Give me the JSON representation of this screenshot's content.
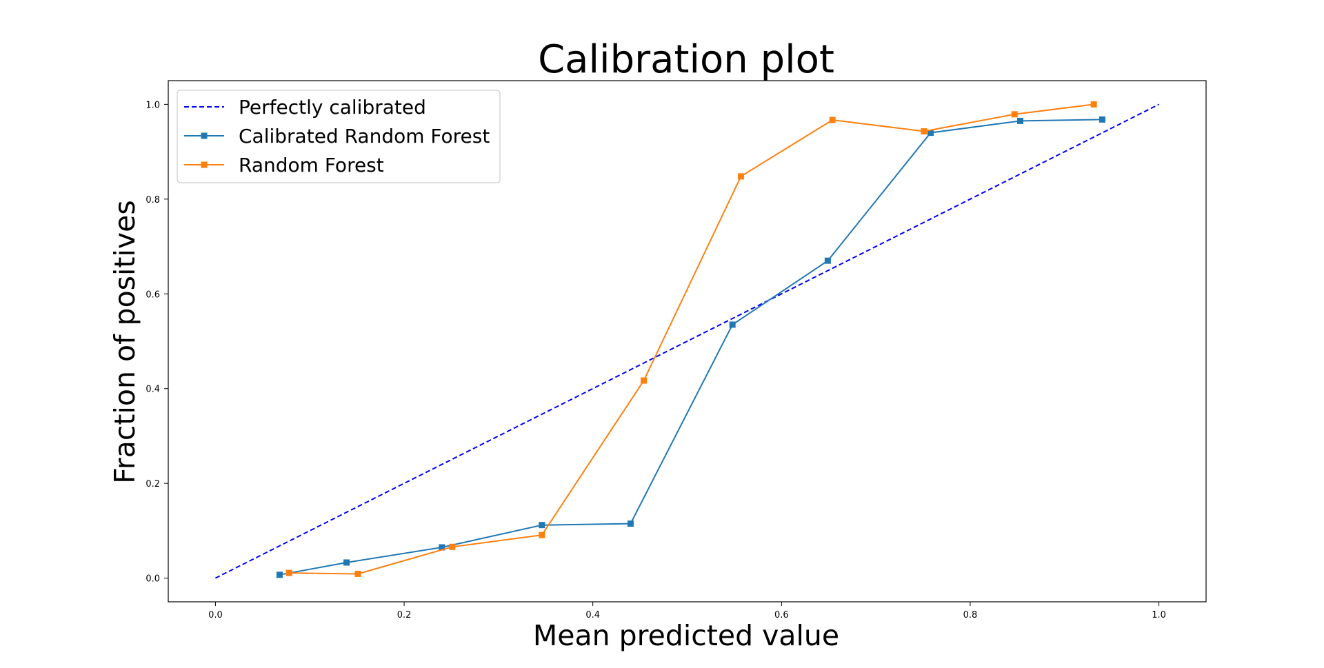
{
  "chart_data": {
    "type": "line",
    "title": "Calibration plot",
    "xlabel": "Mean predicted value",
    "ylabel": "Fraction of positives",
    "xlim": [
      -0.05,
      1.05
    ],
    "ylim": [
      -0.05,
      1.05
    ],
    "xticks": [
      "0.0",
      "0.2",
      "0.4",
      "0.6",
      "0.8",
      "1.0"
    ],
    "yticks": [
      "0.0",
      "0.2",
      "0.4",
      "0.6",
      "0.8",
      "1.0"
    ],
    "grid": false,
    "legend_position": "upper-left",
    "series": [
      {
        "name": "Perfectly calibrated",
        "style": "dashed",
        "marker": "none",
        "color": "#0000ff",
        "x": [
          0.0,
          1.0
        ],
        "y": [
          0.0,
          1.0
        ]
      },
      {
        "name": "Calibrated Random Forest",
        "style": "solid",
        "marker": "square",
        "color": "#1f77b4",
        "x": [
          0.068,
          0.139,
          0.24,
          0.346,
          0.44,
          0.548,
          0.649,
          0.758,
          0.853,
          0.94
        ],
        "y": [
          0.007,
          0.033,
          0.065,
          0.112,
          0.115,
          0.535,
          0.67,
          0.94,
          0.965,
          0.968
        ]
      },
      {
        "name": "Random Forest",
        "style": "solid",
        "marker": "square",
        "color": "#ff7f0e",
        "x": [
          0.078,
          0.151,
          0.251,
          0.346,
          0.454,
          0.557,
          0.654,
          0.751,
          0.847,
          0.931
        ],
        "y": [
          0.011,
          0.009,
          0.066,
          0.091,
          0.417,
          0.848,
          0.967,
          0.943,
          0.979,
          1.0
        ]
      }
    ]
  }
}
